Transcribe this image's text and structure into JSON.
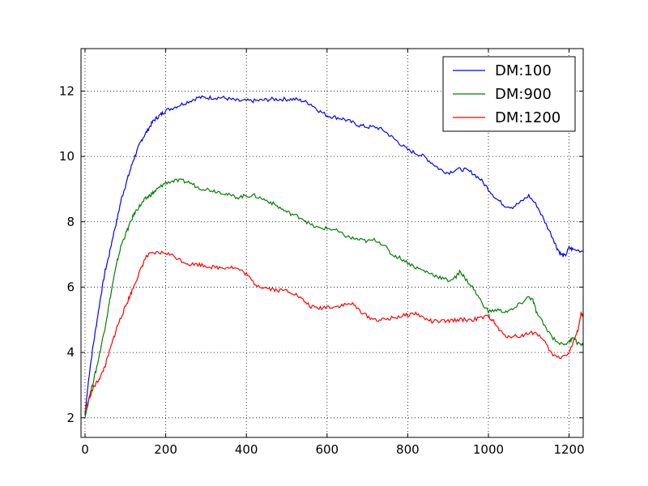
{
  "chart_data": {
    "type": "line",
    "title": "",
    "xlabel": "",
    "ylabel": "",
    "xlim": [
      -10,
      1235
    ],
    "ylim": [
      1.4,
      13.3
    ],
    "xticks": [
      0,
      200,
      400,
      600,
      800,
      1000,
      1200
    ],
    "yticks": [
      2,
      4,
      6,
      8,
      10,
      12
    ],
    "grid": true,
    "legend_position": "top-right",
    "series": [
      {
        "name": "DM:100",
        "color": "#0000ff",
        "points": [
          [
            0,
            2.1
          ],
          [
            10,
            3.3
          ],
          [
            20,
            4.2
          ],
          [
            30,
            5.0
          ],
          [
            40,
            5.8
          ],
          [
            50,
            6.5
          ],
          [
            60,
            7.0
          ],
          [
            70,
            7.6
          ],
          [
            80,
            8.1
          ],
          [
            90,
            8.7
          ],
          [
            100,
            9.1
          ],
          [
            110,
            9.5
          ],
          [
            120,
            9.9
          ],
          [
            130,
            10.2
          ],
          [
            140,
            10.5
          ],
          [
            150,
            10.7
          ],
          [
            160,
            10.9
          ],
          [
            170,
            11.1
          ],
          [
            180,
            11.2
          ],
          [
            190,
            11.3
          ],
          [
            200,
            11.4
          ],
          [
            220,
            11.5
          ],
          [
            240,
            11.6
          ],
          [
            260,
            11.7
          ],
          [
            280,
            11.8
          ],
          [
            300,
            11.8
          ],
          [
            320,
            11.8
          ],
          [
            340,
            11.8
          ],
          [
            360,
            11.75
          ],
          [
            380,
            11.7
          ],
          [
            400,
            11.7
          ],
          [
            420,
            11.7
          ],
          [
            440,
            11.72
          ],
          [
            460,
            11.75
          ],
          [
            480,
            11.75
          ],
          [
            500,
            11.75
          ],
          [
            520,
            11.75
          ],
          [
            540,
            11.7
          ],
          [
            560,
            11.6
          ],
          [
            580,
            11.4
          ],
          [
            600,
            11.25
          ],
          [
            620,
            11.2
          ],
          [
            640,
            11.15
          ],
          [
            660,
            11.05
          ],
          [
            680,
            10.95
          ],
          [
            700,
            10.9
          ],
          [
            720,
            10.9
          ],
          [
            740,
            10.8
          ],
          [
            760,
            10.6
          ],
          [
            780,
            10.4
          ],
          [
            800,
            10.2
          ],
          [
            820,
            10.1
          ],
          [
            840,
            10.0
          ],
          [
            860,
            9.8
          ],
          [
            880,
            9.6
          ],
          [
            900,
            9.5
          ],
          [
            920,
            9.6
          ],
          [
            940,
            9.6
          ],
          [
            960,
            9.5
          ],
          [
            980,
            9.3
          ],
          [
            1000,
            9.0
          ],
          [
            1020,
            8.7
          ],
          [
            1040,
            8.5
          ],
          [
            1060,
            8.45
          ],
          [
            1080,
            8.6
          ],
          [
            1100,
            8.8
          ],
          [
            1120,
            8.5
          ],
          [
            1140,
            8.0
          ],
          [
            1160,
            7.5
          ],
          [
            1170,
            7.2
          ],
          [
            1180,
            7.0
          ],
          [
            1190,
            6.95
          ],
          [
            1200,
            7.2
          ],
          [
            1210,
            7.15
          ],
          [
            1235,
            7.1
          ]
        ]
      },
      {
        "name": "DM:900",
        "color": "#008000",
        "points": [
          [
            0,
            2.0
          ],
          [
            10,
            2.6
          ],
          [
            20,
            3.1
          ],
          [
            30,
            3.6
          ],
          [
            40,
            4.2
          ],
          [
            50,
            4.8
          ],
          [
            60,
            5.5
          ],
          [
            70,
            6.2
          ],
          [
            80,
            6.8
          ],
          [
            90,
            7.3
          ],
          [
            100,
            7.6
          ],
          [
            110,
            7.9
          ],
          [
            120,
            8.2
          ],
          [
            130,
            8.4
          ],
          [
            140,
            8.55
          ],
          [
            150,
            8.7
          ],
          [
            160,
            8.8
          ],
          [
            170,
            8.9
          ],
          [
            180,
            9.0
          ],
          [
            190,
            9.1
          ],
          [
            200,
            9.2
          ],
          [
            220,
            9.25
          ],
          [
            240,
            9.25
          ],
          [
            260,
            9.2
          ],
          [
            280,
            9.05
          ],
          [
            300,
            9.0
          ],
          [
            320,
            8.95
          ],
          [
            340,
            8.9
          ],
          [
            360,
            8.8
          ],
          [
            380,
            8.75
          ],
          [
            400,
            8.8
          ],
          [
            420,
            8.8
          ],
          [
            440,
            8.7
          ],
          [
            460,
            8.6
          ],
          [
            480,
            8.45
          ],
          [
            500,
            8.3
          ],
          [
            520,
            8.2
          ],
          [
            540,
            8.1
          ],
          [
            560,
            7.9
          ],
          [
            580,
            7.8
          ],
          [
            600,
            7.8
          ],
          [
            620,
            7.75
          ],
          [
            640,
            7.6
          ],
          [
            660,
            7.5
          ],
          [
            680,
            7.45
          ],
          [
            700,
            7.4
          ],
          [
            720,
            7.45
          ],
          [
            740,
            7.3
          ],
          [
            760,
            7.0
          ],
          [
            780,
            6.9
          ],
          [
            800,
            6.75
          ],
          [
            820,
            6.6
          ],
          [
            840,
            6.5
          ],
          [
            860,
            6.4
          ],
          [
            880,
            6.3
          ],
          [
            900,
            6.2
          ],
          [
            920,
            6.3
          ],
          [
            930,
            6.5
          ],
          [
            940,
            6.3
          ],
          [
            960,
            6.0
          ],
          [
            980,
            5.6
          ],
          [
            1000,
            5.25
          ],
          [
            1020,
            5.3
          ],
          [
            1040,
            5.25
          ],
          [
            1060,
            5.3
          ],
          [
            1080,
            5.5
          ],
          [
            1100,
            5.7
          ],
          [
            1110,
            5.6
          ],
          [
            1120,
            5.2
          ],
          [
            1140,
            4.8
          ],
          [
            1160,
            4.45
          ],
          [
            1180,
            4.25
          ],
          [
            1200,
            4.3
          ],
          [
            1210,
            4.5
          ],
          [
            1220,
            4.3
          ],
          [
            1235,
            4.2
          ]
        ]
      },
      {
        "name": "DM:1200",
        "color": "#ff0000",
        "points": [
          [
            0,
            2.2
          ],
          [
            10,
            2.6
          ],
          [
            20,
            2.9
          ],
          [
            30,
            3.1
          ],
          [
            40,
            3.3
          ],
          [
            50,
            3.6
          ],
          [
            60,
            4.0
          ],
          [
            70,
            4.4
          ],
          [
            80,
            4.8
          ],
          [
            90,
            5.1
          ],
          [
            100,
            5.4
          ],
          [
            110,
            5.7
          ],
          [
            120,
            6.0
          ],
          [
            130,
            6.3
          ],
          [
            140,
            6.6
          ],
          [
            150,
            6.9
          ],
          [
            160,
            7.0
          ],
          [
            180,
            7.05
          ],
          [
            200,
            7.05
          ],
          [
            220,
            6.95
          ],
          [
            240,
            6.8
          ],
          [
            260,
            6.7
          ],
          [
            280,
            6.7
          ],
          [
            300,
            6.65
          ],
          [
            320,
            6.6
          ],
          [
            340,
            6.6
          ],
          [
            360,
            6.62
          ],
          [
            380,
            6.55
          ],
          [
            400,
            6.4
          ],
          [
            420,
            6.1
          ],
          [
            440,
            6.0
          ],
          [
            460,
            5.95
          ],
          [
            480,
            5.9
          ],
          [
            500,
            5.9
          ],
          [
            520,
            5.8
          ],
          [
            540,
            5.6
          ],
          [
            560,
            5.4
          ],
          [
            580,
            5.35
          ],
          [
            600,
            5.4
          ],
          [
            620,
            5.4
          ],
          [
            640,
            5.45
          ],
          [
            660,
            5.5
          ],
          [
            680,
            5.3
          ],
          [
            700,
            5.1
          ],
          [
            720,
            5.0
          ],
          [
            740,
            5.0
          ],
          [
            760,
            5.05
          ],
          [
            780,
            5.1
          ],
          [
            800,
            5.15
          ],
          [
            820,
            5.2
          ],
          [
            840,
            5.05
          ],
          [
            860,
            4.95
          ],
          [
            880,
            4.95
          ],
          [
            900,
            4.95
          ],
          [
            920,
            5.0
          ],
          [
            940,
            5.0
          ],
          [
            960,
            5.0
          ],
          [
            980,
            5.05
          ],
          [
            1000,
            5.1
          ],
          [
            1010,
            5.0
          ],
          [
            1020,
            4.8
          ],
          [
            1040,
            4.5
          ],
          [
            1060,
            4.5
          ],
          [
            1080,
            4.5
          ],
          [
            1100,
            4.6
          ],
          [
            1120,
            4.6
          ],
          [
            1140,
            4.3
          ],
          [
            1160,
            3.9
          ],
          [
            1180,
            3.85
          ],
          [
            1200,
            4.0
          ],
          [
            1210,
            4.3
          ],
          [
            1220,
            4.6
          ],
          [
            1230,
            5.2
          ],
          [
            1235,
            5.1
          ]
        ]
      }
    ]
  }
}
